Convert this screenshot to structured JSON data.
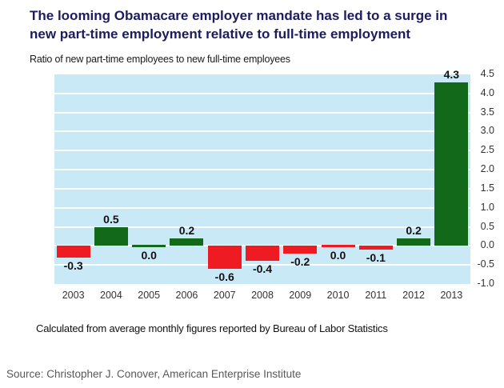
{
  "page": {
    "title_line1": "The looming Obamacare employer mandate has led to a surge in",
    "title_line2": "new part-time employment relative to full-time employment",
    "note": "Calculated from average monthly figures reported by Bureau of Labor Statistics",
    "source": "Source: Christopher J. Conover, American Enterprise Institute"
  },
  "colors": {
    "title": "#1c1c5e",
    "plot_bg": "#c9e9f7",
    "gridline": "#ffffff",
    "bar_green": "#12691a",
    "bar_red": "#ee1b22",
    "axis_text": "#333333",
    "source_text": "#595959"
  },
  "chart_data": {
    "type": "bar",
    "title": "Ratio of new part-time employees to new full-time employees",
    "categories": [
      "2003",
      "2004",
      "2005",
      "2006",
      "2007",
      "2008",
      "2009",
      "2010",
      "2011",
      "2012",
      "2013"
    ],
    "values": [
      -0.3,
      0.5,
      0.0,
      0.2,
      -0.6,
      -0.4,
      -0.2,
      0.0,
      -0.1,
      0.2,
      4.3
    ],
    "labels": [
      "-0.3",
      "0.5",
      "0.0",
      "0.2",
      "-0.6",
      "-0.4",
      "-0.2",
      "0.0",
      "-0.1",
      "0.2",
      "4.3"
    ],
    "bar_colors": [
      "red",
      "green",
      "green",
      "green",
      "red",
      "red",
      "red",
      "red",
      "red",
      "green",
      "green"
    ],
    "ylim": [
      -1.0,
      4.5
    ],
    "ytick_step": 0.5,
    "yticks": [
      "4.5",
      "4.0",
      "3.5",
      "3.0",
      "2.5",
      "2.0",
      "1.5",
      "1.0",
      "0.5",
      "0.0",
      "-0.5",
      "-1.0"
    ],
    "yticks_side": "right",
    "grid": "horizontal",
    "legend": "none",
    "xlabel": "",
    "ylabel": ""
  }
}
